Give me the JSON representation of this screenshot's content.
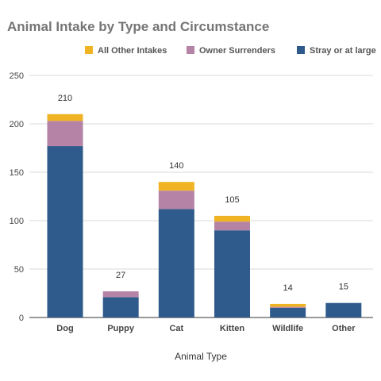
{
  "chart_data": {
    "type": "bar",
    "stacked": true,
    "title": "Animal Intake by Type and Circumstance",
    "xlabel": "Animal Type",
    "ylabel": "",
    "ylim": [
      0,
      250
    ],
    "yticks": [
      0,
      50,
      100,
      150,
      200,
      250
    ],
    "grid": true,
    "legend_position": "top",
    "categories": [
      "Dog",
      "Puppy",
      "Cat",
      "Kitten",
      "Wildlife",
      "Other"
    ],
    "totals": [
      210,
      27,
      140,
      105,
      14,
      15
    ],
    "series": [
      {
        "name": "Stray or at large",
        "color": "#2e5a8c",
        "values": [
          177,
          21,
          112,
          90,
          10,
          15
        ]
      },
      {
        "name": "Owner Surrenders",
        "color": "#b583a6",
        "values": [
          26,
          6,
          19,
          9,
          1,
          0
        ]
      },
      {
        "name": "All Other Intakes",
        "color": "#f0b323",
        "values": [
          7,
          0,
          9,
          6,
          3,
          0
        ]
      }
    ]
  }
}
